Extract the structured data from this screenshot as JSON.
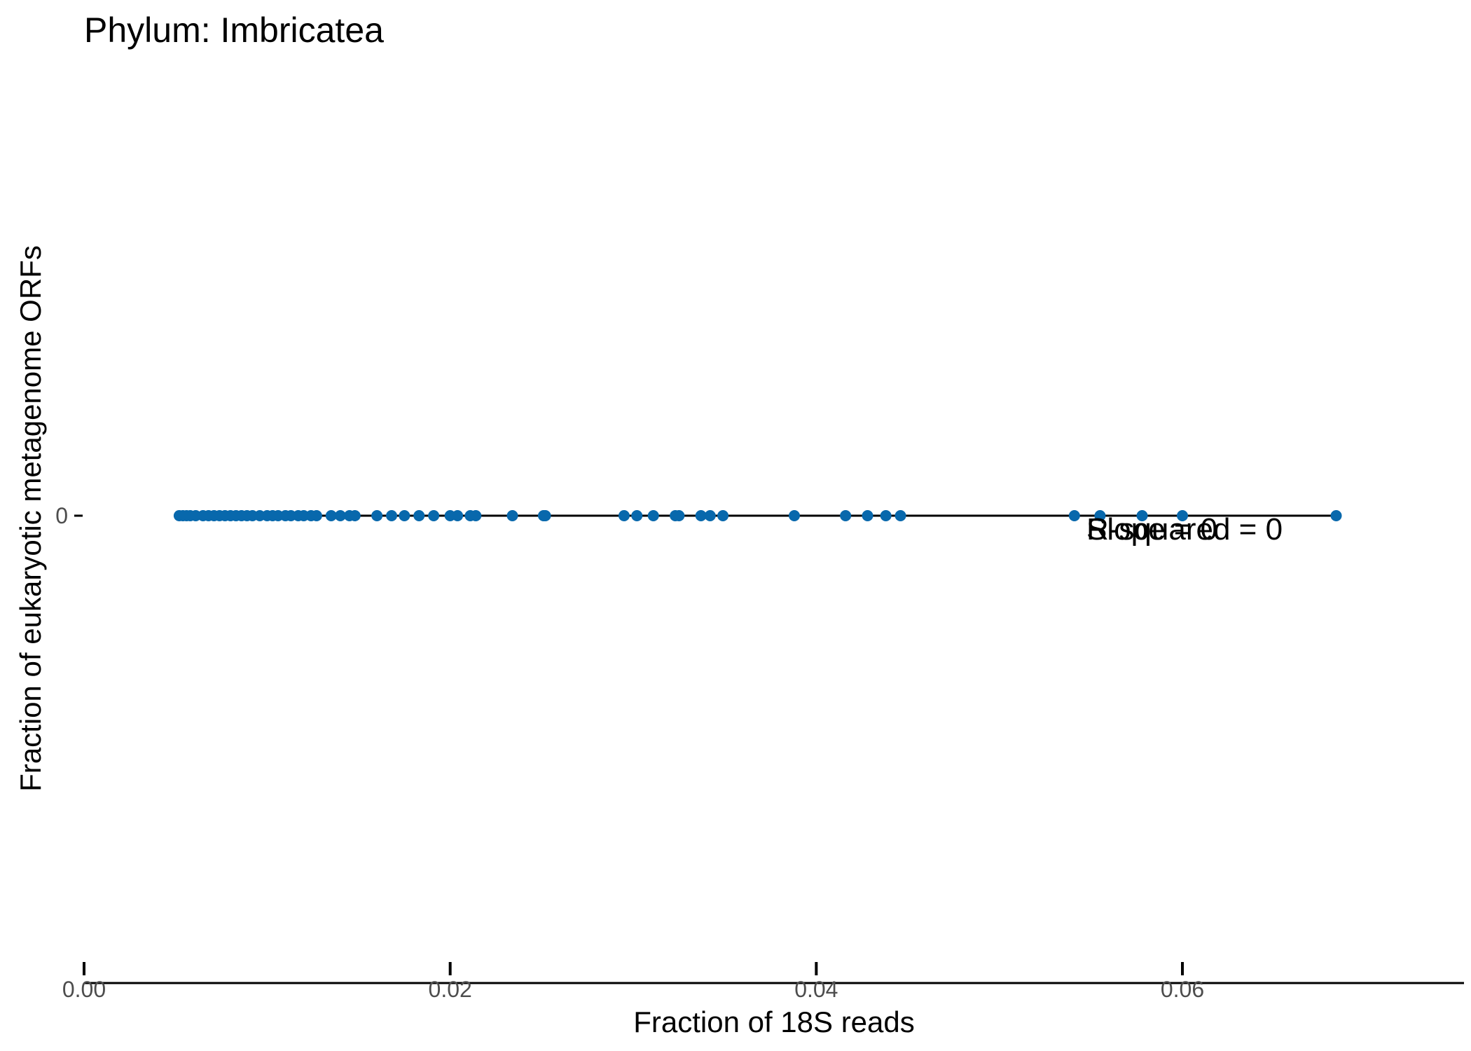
{
  "chart_data": {
    "type": "scatter",
    "title": "Phylum:  Imbricatea",
    "xlabel": "Fraction of 18S reads",
    "ylabel": "Fraction of eukaryotic metagenome ORFs",
    "xlim": [
      0,
      0.075
    ],
    "x_ticks": [
      0.0,
      0.02,
      0.04,
      0.06
    ],
    "x_tick_labels": [
      "0.00",
      "0.02",
      "0.04",
      "0.06"
    ],
    "y_ticks": [
      0
    ],
    "y_tick_labels": [
      "0"
    ],
    "grid": false,
    "point_color": "#0868ac",
    "line_color": "#000000",
    "annotations": [
      "R-squared =  0",
      "Slope =  0"
    ],
    "regression_line": {
      "x_start": 0.0052,
      "x_end": 0.0684,
      "y": 0
    },
    "series": [
      {
        "x": [
          0.0052,
          0.0054,
          0.0056,
          0.0058,
          0.0061,
          0.0065,
          0.0068,
          0.0071,
          0.0074,
          0.0077,
          0.008,
          0.0083,
          0.0086,
          0.0089,
          0.0092,
          0.0096,
          0.01,
          0.0103,
          0.0106,
          0.011,
          0.0113,
          0.0117,
          0.012,
          0.0124,
          0.0127,
          0.0135,
          0.014,
          0.0145,
          0.0148,
          0.016,
          0.0168,
          0.0175,
          0.0183,
          0.0191,
          0.02,
          0.0204,
          0.0211,
          0.0214,
          0.0234,
          0.0251,
          0.0252,
          0.0295,
          0.0302,
          0.0311,
          0.0323,
          0.0325,
          0.0337,
          0.0342,
          0.0349,
          0.0388,
          0.0416,
          0.0428,
          0.0438,
          0.0446,
          0.0541,
          0.0555,
          0.0578,
          0.06,
          0.0684
        ],
        "y": [
          0,
          0,
          0,
          0,
          0,
          0,
          0,
          0,
          0,
          0,
          0,
          0,
          0,
          0,
          0,
          0,
          0,
          0,
          0,
          0,
          0,
          0,
          0,
          0,
          0,
          0,
          0,
          0,
          0,
          0,
          0,
          0,
          0,
          0,
          0,
          0,
          0,
          0,
          0,
          0,
          0,
          0,
          0,
          0,
          0,
          0,
          0,
          0,
          0,
          0,
          0,
          0,
          0,
          0,
          0,
          0,
          0,
          0,
          0
        ]
      }
    ]
  }
}
